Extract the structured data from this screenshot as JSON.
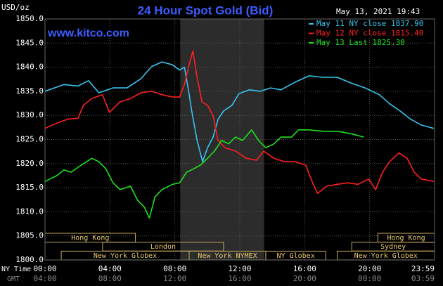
{
  "chart_data": {
    "type": "line",
    "title": "24 Hour Spot Gold (Bid)",
    "watermark": "www.kitco.com",
    "unit_label": "USD/oz",
    "timestamp": "May 13, 2021 19:43",
    "x_axis_label": "NY Time",
    "x2_axis_label": "GMT",
    "xlim": [
      0,
      24
    ],
    "ylim": [
      1800,
      1850
    ],
    "yticks": [
      {
        "value": 1800,
        "label": "1800.0"
      },
      {
        "value": 1805,
        "label": "1805.0"
      },
      {
        "value": 1810,
        "label": "1810.0"
      },
      {
        "value": 1815,
        "label": "1815.0"
      },
      {
        "value": 1820,
        "label": "1820.0"
      },
      {
        "value": 1825,
        "label": "1825.0"
      },
      {
        "value": 1830,
        "label": "1830.0"
      },
      {
        "value": 1835,
        "label": "1835.0"
      },
      {
        "value": 1840,
        "label": "1840.0"
      },
      {
        "value": 1845,
        "label": "1845.0"
      },
      {
        "value": 1850,
        "label": "1850.0"
      }
    ],
    "xticks": [
      {
        "value": 0,
        "label": "00:00"
      },
      {
        "value": 4,
        "label": "04:00"
      },
      {
        "value": 8,
        "label": "08:00"
      },
      {
        "value": 12,
        "label": "12:00"
      },
      {
        "value": 16,
        "label": "16:00"
      },
      {
        "value": 20,
        "label": "20:00"
      },
      {
        "value": 23.98,
        "label": "23:59"
      }
    ],
    "x2ticks": [
      {
        "value": 0,
        "label": "04:00"
      },
      {
        "value": 4,
        "label": "08:00"
      },
      {
        "value": 8,
        "label": "12:00"
      },
      {
        "value": 12,
        "label": "16:00"
      },
      {
        "value": 16,
        "label": "20:00"
      },
      {
        "value": 20,
        "label": "00:00"
      },
      {
        "value": 23.98,
        "label": "03:59"
      }
    ],
    "grid": true,
    "highlight": [
      8.33,
      13.5
    ],
    "sessions": [
      [
        {
          "name": "Hong Kong",
          "start": 0,
          "end": 5.57
        },
        {
          "name": "Hong Kong",
          "start": 20.5,
          "end": 24
        }
      ],
      [
        {
          "name": "London",
          "start": 3.55,
          "end": 11.0
        },
        {
          "name": "Sydney",
          "start": 18.9,
          "end": 24
        }
      ],
      [
        {
          "name": "New York Globex",
          "start": 1.0,
          "end": 8.88
        },
        {
          "name": "New York NYMEX",
          "start": 8.88,
          "end": 13.6
        },
        {
          "name": "NY Globex",
          "start": 13.6,
          "end": 17.3
        },
        {
          "name": "New York Globex",
          "start": 18.0,
          "end": 24
        }
      ]
    ],
    "series": [
      {
        "name": "May 11 NY close 1837.90",
        "color": "#38c4f0",
        "x": [
          0,
          1.17,
          2.03,
          2.68,
          3.32,
          4.19,
          5.05,
          5.91,
          6.56,
          7.21,
          7.85,
          8.29,
          8.59,
          8.85,
          9.02,
          9.37,
          9.71,
          10.01,
          10.36,
          10.66,
          11.0,
          11.52,
          11.95,
          12.6,
          13.25,
          13.9,
          14.54,
          15.41,
          16.27,
          17.13,
          18.0,
          18.86,
          19.72,
          20.59,
          21.23,
          21.88,
          22.53,
          23.18,
          23.95
        ],
        "values": [
          1835.0,
          1836.4,
          1836.1,
          1837.2,
          1834.7,
          1835.7,
          1835.7,
          1837.6,
          1840.1,
          1841.1,
          1840.5,
          1839.4,
          1840.0,
          1835.0,
          1831.3,
          1824.8,
          1820.4,
          1823.3,
          1825.5,
          1829.2,
          1830.9,
          1832.1,
          1834.5,
          1835.3,
          1835.0,
          1835.7,
          1835.3,
          1836.9,
          1838.2,
          1837.9,
          1837.9,
          1836.7,
          1835.7,
          1834.3,
          1832.4,
          1830.9,
          1829.2,
          1828.0,
          1827.3
        ]
      },
      {
        "name": "May 12 NY close 1815.40",
        "color": "#ff2020",
        "x": [
          0,
          0.73,
          1.38,
          2.03,
          2.37,
          2.89,
          3.54,
          3.97,
          4.62,
          5.27,
          5.91,
          6.56,
          7.21,
          7.85,
          8.29,
          8.59,
          8.85,
          9.11,
          9.37,
          9.67,
          10.01,
          10.36,
          10.66,
          11.09,
          11.74,
          12.39,
          13.03,
          13.47,
          14.11,
          14.76,
          15.41,
          16.06,
          16.49,
          16.79,
          17.35,
          18.0,
          18.64,
          19.29,
          19.94,
          20.37,
          20.8,
          21.23,
          21.8,
          22.31,
          22.75,
          23.18,
          23.95
        ],
        "values": [
          1827.3,
          1828.4,
          1829.2,
          1829.4,
          1832.1,
          1833.5,
          1834.3,
          1830.6,
          1832.8,
          1833.5,
          1834.7,
          1835.0,
          1834.3,
          1833.8,
          1833.8,
          1836.4,
          1840.1,
          1843.4,
          1837.9,
          1832.8,
          1832.1,
          1829.9,
          1824.8,
          1823.3,
          1822.6,
          1821.1,
          1820.7,
          1822.6,
          1821.1,
          1820.4,
          1820.4,
          1819.7,
          1816.0,
          1813.8,
          1815.3,
          1815.7,
          1816.0,
          1815.7,
          1816.8,
          1814.6,
          1818.2,
          1820.4,
          1822.2,
          1821.1,
          1818.2,
          1816.8,
          1816.3
        ]
      },
      {
        "name": "May 13 Last 1825.30",
        "color": "#20e020",
        "x": [
          0,
          0.73,
          1.17,
          1.6,
          2.24,
          2.89,
          3.32,
          3.75,
          4.19,
          4.62,
          5.27,
          5.7,
          6.13,
          6.43,
          6.78,
          7.21,
          7.85,
          8.29,
          8.72,
          9.15,
          9.58,
          10.01,
          10.44,
          10.88,
          11.31,
          11.74,
          12.17,
          12.73,
          13.16,
          13.6,
          14.11,
          14.54,
          15.19,
          15.62,
          16.27,
          17.13,
          18.0,
          18.86,
          19.64
        ],
        "values": [
          1816.3,
          1817.5,
          1818.7,
          1818.2,
          1819.7,
          1821.1,
          1820.4,
          1818.9,
          1816.0,
          1814.6,
          1815.3,
          1812.4,
          1810.9,
          1808.7,
          1813.1,
          1814.6,
          1815.7,
          1816.0,
          1818.2,
          1818.9,
          1819.7,
          1821.1,
          1822.6,
          1824.8,
          1824.1,
          1825.5,
          1824.8,
          1827.0,
          1824.8,
          1823.3,
          1824.1,
          1825.5,
          1825.5,
          1827.0,
          1827.0,
          1826.7,
          1826.7,
          1826.2,
          1825.5
        ]
      }
    ]
  }
}
